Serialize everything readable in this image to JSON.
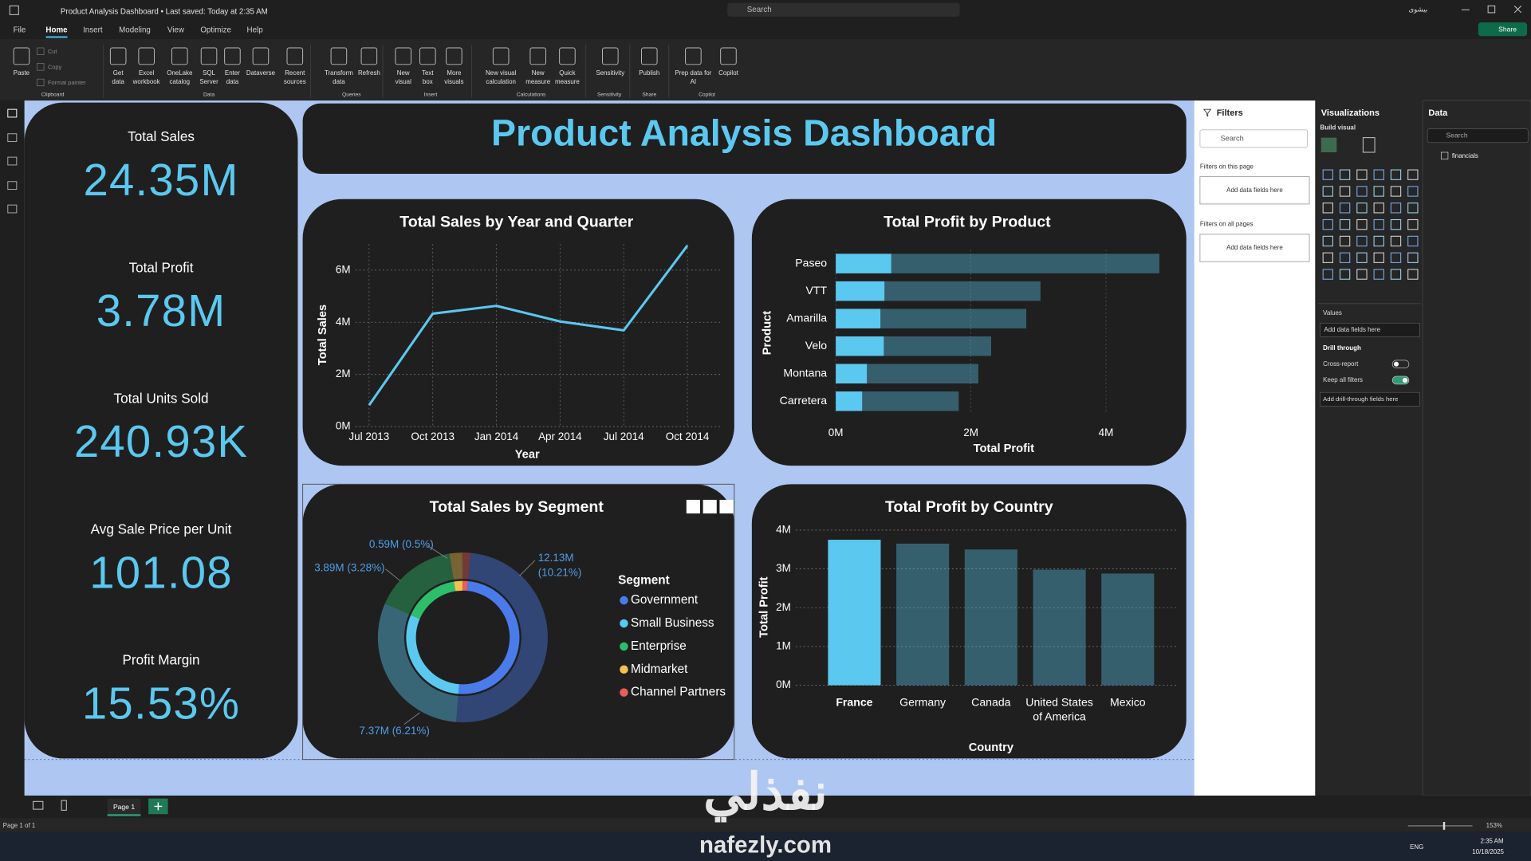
{
  "window": {
    "title": "Product Analysis Dashboard • Last saved: Today at 2:35 AM",
    "search": "Search",
    "user": "بيشوى",
    "share": "Share"
  },
  "menu": [
    "File",
    "Home",
    "Insert",
    "Modeling",
    "View",
    "Optimize",
    "Help"
  ],
  "active_menu": "Home",
  "ribbon": [
    {
      "label": "Clipboard",
      "buttons": [
        [
          "Paste"
        ]
      ],
      "small": [
        "Cut",
        "Copy",
        "Format painter"
      ]
    },
    {
      "label": "Data",
      "buttons": [
        [
          "Get",
          "data"
        ],
        [
          "Excel",
          "workbook"
        ],
        [
          "OneLake",
          "catalog"
        ],
        [
          "SQL",
          "Server"
        ],
        [
          "Enter",
          "data"
        ],
        [
          "Dataverse"
        ],
        [
          "Recent",
          "sources"
        ]
      ]
    },
    {
      "label": "Queries",
      "buttons": [
        [
          "Transform",
          "data"
        ],
        [
          "Refresh"
        ]
      ]
    },
    {
      "label": "Insert",
      "buttons": [
        [
          "New",
          "visual"
        ],
        [
          "Text",
          "box"
        ],
        [
          "More",
          "visuals"
        ]
      ]
    },
    {
      "label": "Calculations",
      "buttons": [
        [
          "New visual",
          "calculation"
        ],
        [
          "New",
          "measure"
        ],
        [
          "Quick",
          "measure"
        ]
      ]
    },
    {
      "label": "Sensitivity",
      "buttons": [
        [
          "Sensitivity"
        ]
      ]
    },
    {
      "label": "Share",
      "buttons": [
        [
          "Publish"
        ]
      ]
    },
    {
      "label": "Copilot",
      "buttons": [
        [
          "Prep data for",
          "AI"
        ],
        [
          "Copilot"
        ]
      ]
    }
  ],
  "dashboard_title": "Product Analysis Dashboard",
  "cards": [
    {
      "label": "Total Sales",
      "value": "24.35M"
    },
    {
      "label": "Total Profit",
      "value": "3.78M"
    },
    {
      "label": "Total Units Sold",
      "value": "240.93K"
    },
    {
      "label": "Avg Sale Price per Unit",
      "value": "101.08"
    },
    {
      "label": "Profit Margin",
      "value": "15.53%"
    }
  ],
  "chart_data": [
    {
      "type": "line",
      "title": "Total Sales by Year and Quarter",
      "x_label": "Year",
      "y_label": "Total Sales",
      "categories": [
        "Jul 2013",
        "Oct 2013",
        "Jan 2014",
        "Apr 2014",
        "Jul 2014",
        "Oct 2014"
      ],
      "values": [
        820000,
        4330000,
        4630000,
        4030000,
        3690000,
        6940000
      ],
      "color": "#5bc8ef",
      "ylim": [
        0,
        7000000
      ],
      "yticks": [
        {
          "value": 0,
          "label": "0M"
        },
        {
          "value": 2000000,
          "label": "2M"
        },
        {
          "value": 4000000,
          "label": "4M"
        },
        {
          "value": 6000000,
          "label": "6M"
        }
      ],
      "grid": true
    },
    {
      "type": "hbar",
      "title": "Total Profit by Product",
      "x_label": "Total Profit",
      "y_label": "Product",
      "categories": [
        "Paseo",
        "VTT",
        "Amarilla",
        "Velo",
        "Montana",
        "Carretera"
      ],
      "values": [
        4790000,
        3030000,
        2820000,
        2300000,
        2110000,
        1820000
      ],
      "highlighted_values": [
        820000,
        720000,
        660000,
        710000,
        460000,
        390000
      ],
      "color": "#5bc8ef",
      "xlim": [
        0,
        4900000
      ],
      "xticks": [
        {
          "value": 0,
          "label": "0M"
        },
        {
          "value": 2000000,
          "label": "2M"
        },
        {
          "value": 4000000,
          "label": "4M"
        }
      ],
      "grid": true
    },
    {
      "type": "donut",
      "title": "Total Sales by Segment",
      "legend_title": "Segment",
      "categories": [
        "Government",
        "Small Business",
        "Enterprise",
        "Midmarket",
        "Channel Partners"
      ],
      "values": [
        12130000,
        7370000,
        3890000,
        590000,
        370000
      ],
      "value_labels": [
        "12.13M (10.21%)",
        "7.37M (6.21%)",
        "3.89M (3.28%)",
        "0.59M (0.5%)",
        null
      ],
      "colors": [
        "#4a7bea",
        "#5bc8ef",
        "#2ebd6b",
        "#f2c14e",
        "#e85d5d"
      ]
    },
    {
      "type": "bar",
      "title": "Total Profit by Country",
      "x_label": "Country",
      "y_label": "Total Profit",
      "categories": [
        "France",
        "Germany",
        "Canada",
        "United States of America",
        "Mexico"
      ],
      "values": [
        3750000,
        3650000,
        3500000,
        2980000,
        2880000
      ],
      "color": "#5bc8ef",
      "selected": "France",
      "ylim": [
        0,
        4000000
      ],
      "yticks": [
        {
          "value": 0,
          "label": "0M"
        },
        {
          "value": 1000000,
          "label": "1M"
        },
        {
          "value": 2000000,
          "label": "2M"
        },
        {
          "value": 3000000,
          "label": "3M"
        },
        {
          "value": 4000000,
          "label": "4M"
        }
      ],
      "grid": true
    }
  ],
  "filters": {
    "title": "Filters",
    "search": "Search",
    "sections": [
      {
        "label": "Filters on this page",
        "placeholder": "Add data fields here"
      },
      {
        "label": "Filters on all pages",
        "placeholder": "Add data fields here"
      }
    ]
  },
  "visualizations": {
    "title": "Visualizations",
    "build": "Build visual",
    "values": "Values",
    "values_placeholder": "Add data fields here",
    "drill_title": "Drill through",
    "toggles": [
      {
        "label": "Cross-report",
        "on": false
      },
      {
        "label": "Keep all filters",
        "on": true
      }
    ],
    "drill_placeholder": "Add drill-through fields here"
  },
  "data_pane": {
    "title": "Data",
    "search": "Search",
    "tables": [
      "financials"
    ]
  },
  "pages": {
    "tabs": [
      "Page 1"
    ],
    "status": "Page 1 of 1",
    "zoom": "153%"
  },
  "taskbar": {
    "lang": "ENG",
    "time": "2:35 AM",
    "date": "10/18/2025"
  },
  "watermark": {
    "arabic": "نفذلي",
    "latin": "nafezly.com"
  }
}
